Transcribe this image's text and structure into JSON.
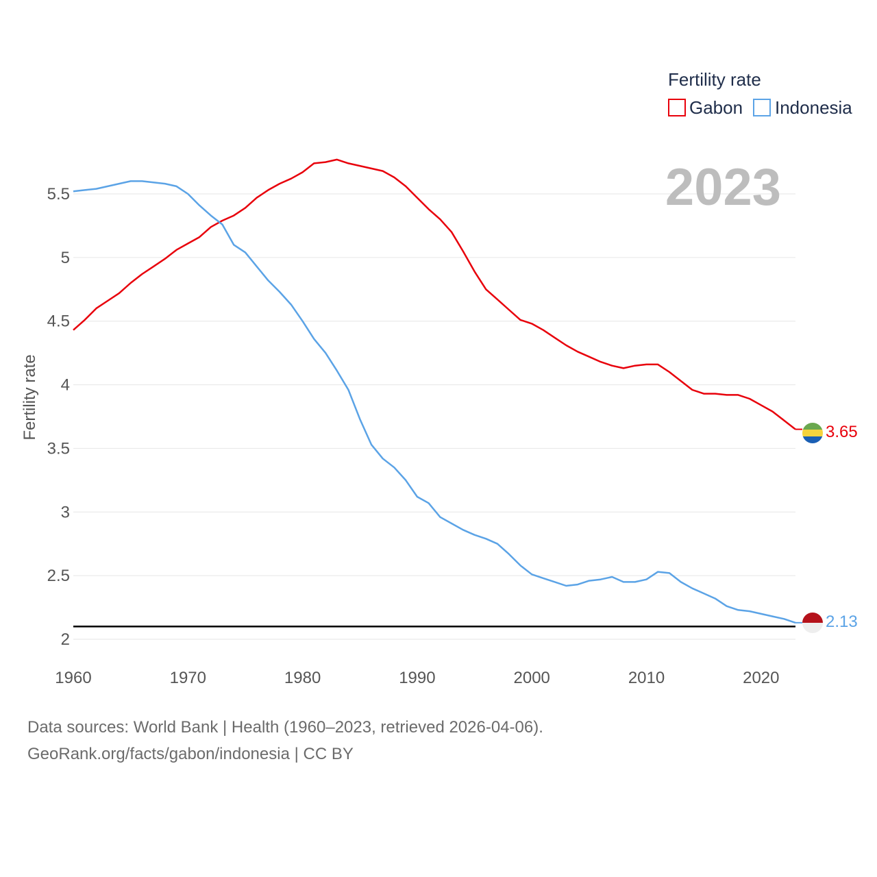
{
  "chart_data": {
    "type": "line",
    "title": "Fertility rate",
    "ylabel": "Fertility rate",
    "xlabel": "",
    "current_year": "2023",
    "xlim": [
      1960,
      2023
    ],
    "ylim": [
      1.95,
      5.92
    ],
    "x_ticks": [
      1960,
      1970,
      1980,
      1990,
      2000,
      2010,
      2020
    ],
    "y_ticks": [
      2,
      2.5,
      3,
      3.5,
      4,
      4.5,
      5,
      5.5
    ],
    "y_tick_labels": [
      "2",
      "2.5",
      "3",
      "3.5",
      "4",
      "4.5",
      "5",
      "5.5"
    ],
    "reference_line": 2.1,
    "grid": true,
    "legend_position": "top-right",
    "series": [
      {
        "name": "Gabon",
        "color": "#e8000b",
        "flag": "gabon-flag",
        "end_label": "3.65",
        "values": [
          4.43,
          4.51,
          4.6,
          4.66,
          4.72,
          4.8,
          4.87,
          4.93,
          4.99,
          5.06,
          5.11,
          5.16,
          5.24,
          5.29,
          5.33,
          5.39,
          5.47,
          5.53,
          5.58,
          5.62,
          5.67,
          5.74,
          5.75,
          5.77,
          5.74,
          5.72,
          5.7,
          5.68,
          5.63,
          5.56,
          5.47,
          5.38,
          5.3,
          5.2,
          5.05,
          4.89,
          4.75,
          4.67,
          4.59,
          4.51,
          4.48,
          4.43,
          4.37,
          4.31,
          4.26,
          4.22,
          4.18,
          4.15,
          4.13,
          4.15,
          4.16,
          4.16,
          4.1,
          4.03,
          3.96,
          3.93,
          3.93,
          3.92,
          3.92,
          3.89,
          3.84,
          3.79,
          3.72,
          3.65
        ]
      },
      {
        "name": "Indonesia",
        "color": "#5ba3e6",
        "flag": "indonesia-flag",
        "end_label": "2.13",
        "values": [
          5.52,
          5.53,
          5.54,
          5.56,
          5.58,
          5.6,
          5.6,
          5.59,
          5.58,
          5.56,
          5.5,
          5.41,
          5.33,
          5.26,
          5.1,
          5.04,
          4.93,
          4.82,
          4.73,
          4.63,
          4.5,
          4.36,
          4.25,
          4.11,
          3.96,
          3.73,
          3.53,
          3.42,
          3.35,
          3.25,
          3.12,
          3.07,
          2.96,
          2.91,
          2.86,
          2.82,
          2.79,
          2.75,
          2.67,
          2.58,
          2.51,
          2.48,
          2.45,
          2.42,
          2.43,
          2.46,
          2.47,
          2.49,
          2.45,
          2.45,
          2.47,
          2.53,
          2.52,
          2.45,
          2.4,
          2.36,
          2.32,
          2.26,
          2.23,
          2.22,
          2.2,
          2.18,
          2.16,
          2.13
        ]
      }
    ]
  },
  "footer": {
    "line1": "Data sources: World Bank | Health (1960–2023, retrieved 2026-04-06).",
    "line2": "GeoRank.org/facts/gabon/indonesia | CC BY"
  }
}
